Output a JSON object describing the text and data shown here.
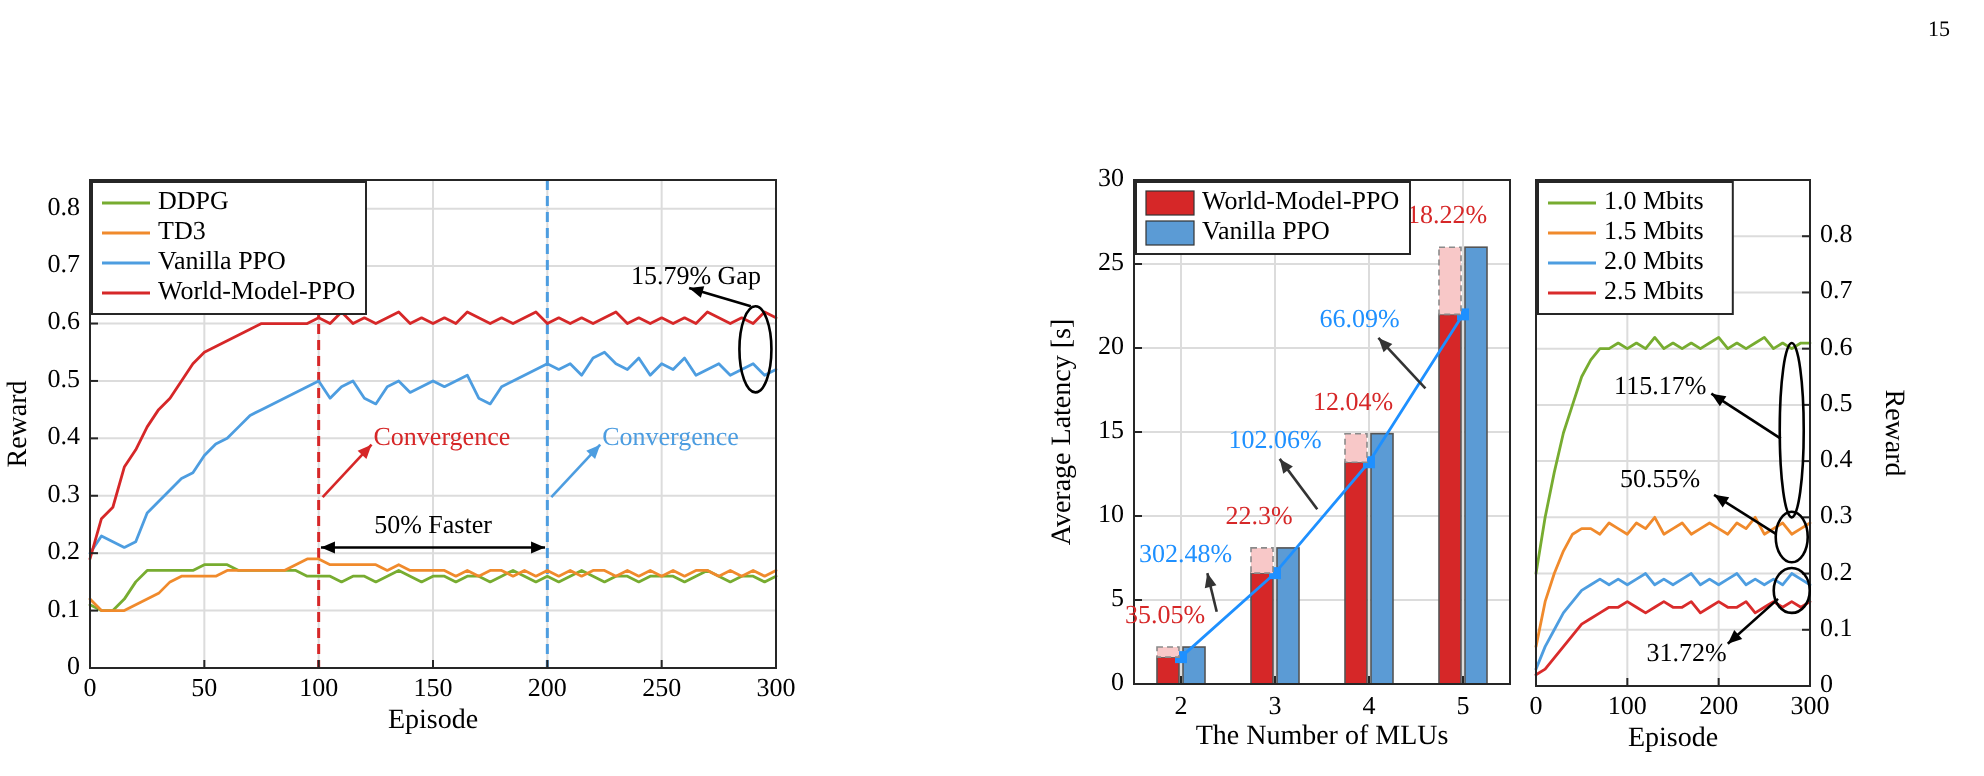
{
  "chart_data": [
    {
      "type": "line",
      "xlabel": "Episode",
      "ylabel": "Reward",
      "x": [
        0,
        5,
        10,
        15,
        20,
        25,
        30,
        35,
        40,
        45,
        50,
        55,
        60,
        65,
        70,
        75,
        80,
        85,
        90,
        95,
        100,
        105,
        110,
        115,
        120,
        125,
        130,
        135,
        140,
        145,
        150,
        155,
        160,
        165,
        170,
        175,
        180,
        185,
        190,
        195,
        200,
        205,
        210,
        215,
        220,
        225,
        230,
        235,
        240,
        245,
        250,
        255,
        260,
        265,
        270,
        275,
        280,
        285,
        290,
        295,
        300
      ],
      "xlim": [
        0,
        300
      ],
      "xticks": [
        0,
        50,
        100,
        150,
        200,
        250,
        300
      ],
      "ylim": [
        0,
        0.85
      ],
      "yticks": [
        0,
        0.1,
        0.2,
        0.3,
        0.4,
        0.5,
        0.6,
        0.7,
        0.8
      ],
      "grid": true,
      "legend": "top left",
      "series": [
        {
          "name": "DDPG",
          "color": "#77ac30",
          "values": [
            0.11,
            0.1,
            0.1,
            0.12,
            0.15,
            0.17,
            0.17,
            0.17,
            0.17,
            0.17,
            0.18,
            0.18,
            0.18,
            0.17,
            0.17,
            0.17,
            0.17,
            0.17,
            0.17,
            0.16,
            0.16,
            0.16,
            0.15,
            0.16,
            0.16,
            0.15,
            0.16,
            0.17,
            0.16,
            0.15,
            0.16,
            0.16,
            0.15,
            0.16,
            0.16,
            0.15,
            0.16,
            0.17,
            0.16,
            0.15,
            0.16,
            0.15,
            0.16,
            0.17,
            0.16,
            0.15,
            0.16,
            0.16,
            0.15,
            0.16,
            0.16,
            0.16,
            0.15,
            0.16,
            0.17,
            0.16,
            0.15,
            0.16,
            0.16,
            0.15,
            0.16
          ]
        },
        {
          "name": "TD3",
          "color": "#f08a2c",
          "values": [
            0.12,
            0.1,
            0.1,
            0.1,
            0.11,
            0.12,
            0.13,
            0.15,
            0.16,
            0.16,
            0.16,
            0.16,
            0.17,
            0.17,
            0.17,
            0.17,
            0.17,
            0.17,
            0.18,
            0.19,
            0.19,
            0.18,
            0.18,
            0.18,
            0.18,
            0.18,
            0.17,
            0.18,
            0.17,
            0.17,
            0.17,
            0.17,
            0.16,
            0.17,
            0.16,
            0.17,
            0.17,
            0.16,
            0.17,
            0.16,
            0.17,
            0.16,
            0.17,
            0.16,
            0.17,
            0.17,
            0.16,
            0.17,
            0.16,
            0.17,
            0.16,
            0.17,
            0.16,
            0.17,
            0.17,
            0.16,
            0.17,
            0.16,
            0.17,
            0.16,
            0.17
          ]
        },
        {
          "name": "Vanilla PPO",
          "color": "#4d9de0",
          "values": [
            0.2,
            0.23,
            0.22,
            0.21,
            0.22,
            0.27,
            0.29,
            0.31,
            0.33,
            0.34,
            0.37,
            0.39,
            0.4,
            0.42,
            0.44,
            0.45,
            0.46,
            0.47,
            0.48,
            0.49,
            0.5,
            0.47,
            0.49,
            0.5,
            0.47,
            0.46,
            0.49,
            0.5,
            0.48,
            0.49,
            0.5,
            0.49,
            0.5,
            0.51,
            0.47,
            0.46,
            0.49,
            0.5,
            0.51,
            0.52,
            0.53,
            0.52,
            0.53,
            0.51,
            0.54,
            0.55,
            0.53,
            0.52,
            0.54,
            0.51,
            0.53,
            0.52,
            0.54,
            0.51,
            0.52,
            0.53,
            0.51,
            0.52,
            0.53,
            0.51,
            0.52
          ]
        },
        {
          "name": "World-Model-PPO",
          "color": "#d62728",
          "values": [
            0.19,
            0.26,
            0.28,
            0.35,
            0.38,
            0.42,
            0.45,
            0.47,
            0.5,
            0.53,
            0.55,
            0.56,
            0.57,
            0.58,
            0.59,
            0.6,
            0.6,
            0.6,
            0.6,
            0.6,
            0.61,
            0.6,
            0.62,
            0.6,
            0.61,
            0.6,
            0.61,
            0.62,
            0.6,
            0.61,
            0.6,
            0.61,
            0.6,
            0.62,
            0.61,
            0.6,
            0.61,
            0.6,
            0.61,
            0.62,
            0.6,
            0.61,
            0.6,
            0.61,
            0.6,
            0.61,
            0.62,
            0.6,
            0.61,
            0.6,
            0.61,
            0.6,
            0.61,
            0.6,
            0.62,
            0.61,
            0.6,
            0.61,
            0.6,
            0.62,
            0.61
          ]
        }
      ],
      "ref_lines": [
        {
          "axis": "x",
          "value": 100,
          "label": "Convergence",
          "color": "#d62728",
          "line_style": "dashed"
        },
        {
          "axis": "x",
          "value": 200,
          "label": "Convergence",
          "color": "#4d9de0",
          "line_style": "dashed"
        }
      ],
      "annotations": [
        "15.79% Gap",
        "50% Faster"
      ]
    },
    {
      "type": "bar",
      "xlabel": "The Number of MLUs",
      "ylabel": "Average Latency [s]",
      "categories": [
        "2",
        "3",
        "4",
        "5"
      ],
      "ylim": [
        0,
        30
      ],
      "yticks": [
        0,
        5,
        10,
        15,
        20,
        25,
        30
      ],
      "grid": true,
      "legend": "top left",
      "series": [
        {
          "name": "World-Model-PPO",
          "color": "#d62728",
          "values": [
            1.6,
            6.6,
            13.2,
            22
          ]
        },
        {
          "name": "Vanilla PPO",
          "color": "#5b9bd5",
          "values": [
            2.2,
            8.1,
            14.9,
            26
          ]
        },
        {
          "type": "line",
          "color": "#1e90ff",
          "values": [
            1.6,
            6.6,
            13.2,
            22
          ],
          "marker": "square"
        }
      ],
      "annotations": [
        {
          "text": "35.05%",
          "x": "2",
          "y": 2.2
        },
        {
          "text": "22.3%",
          "x": "3",
          "y": 8.1
        },
        {
          "text": "12.04%",
          "x": "4",
          "y": 14.9
        },
        {
          "text": "18.22%",
          "x": "5",
          "y": 26
        },
        "302.48%",
        "102.06%",
        "66.09%"
      ]
    },
    {
      "type": "line",
      "xlabel": "Episode",
      "y2label": "Reward",
      "x": [
        0,
        10,
        20,
        30,
        40,
        50,
        60,
        70,
        80,
        90,
        100,
        110,
        120,
        130,
        140,
        150,
        160,
        170,
        180,
        190,
        200,
        210,
        220,
        230,
        240,
        250,
        260,
        270,
        280,
        290,
        300
      ],
      "xlim": [
        0,
        300
      ],
      "xticks": [
        0,
        100,
        200,
        300
      ],
      "y2lim": [
        0,
        0.9
      ],
      "y2ticks": [
        0,
        0.1,
        0.2,
        0.3,
        0.4,
        0.5,
        0.6,
        0.7,
        0.8
      ],
      "grid": true,
      "legend": "top left",
      "series": [
        {
          "name": "1.0 Mbits",
          "axis": "y2",
          "color": "#77ac30",
          "values": [
            0.2,
            0.3,
            0.38,
            0.45,
            0.5,
            0.55,
            0.58,
            0.6,
            0.6,
            0.61,
            0.6,
            0.61,
            0.6,
            0.62,
            0.6,
            0.61,
            0.6,
            0.61,
            0.6,
            0.61,
            0.62,
            0.6,
            0.61,
            0.6,
            0.61,
            0.62,
            0.6,
            0.61,
            0.6,
            0.61,
            0.61
          ]
        },
        {
          "name": "1.5 Mbits",
          "axis": "y2",
          "color": "#f08a2c",
          "values": [
            0.07,
            0.15,
            0.2,
            0.24,
            0.27,
            0.28,
            0.28,
            0.27,
            0.29,
            0.28,
            0.27,
            0.29,
            0.28,
            0.3,
            0.27,
            0.28,
            0.29,
            0.27,
            0.28,
            0.29,
            0.28,
            0.27,
            0.29,
            0.28,
            0.3,
            0.27,
            0.28,
            0.29,
            0.27,
            0.28,
            0.29
          ]
        },
        {
          "name": "2.0 Mbits",
          "axis": "y2",
          "color": "#4d9de0",
          "values": [
            0.03,
            0.07,
            0.1,
            0.13,
            0.15,
            0.17,
            0.18,
            0.19,
            0.18,
            0.19,
            0.18,
            0.19,
            0.2,
            0.18,
            0.19,
            0.18,
            0.19,
            0.2,
            0.18,
            0.19,
            0.18,
            0.19,
            0.2,
            0.18,
            0.19,
            0.18,
            0.19,
            0.18,
            0.2,
            0.19,
            0.18
          ]
        },
        {
          "name": "2.5 Mbits",
          "axis": "y2",
          "color": "#d92b2b",
          "values": [
            0.02,
            0.03,
            0.05,
            0.07,
            0.09,
            0.11,
            0.12,
            0.13,
            0.14,
            0.14,
            0.15,
            0.14,
            0.13,
            0.14,
            0.15,
            0.14,
            0.14,
            0.15,
            0.13,
            0.14,
            0.15,
            0.14,
            0.14,
            0.15,
            0.13,
            0.14,
            0.15,
            0.14,
            0.15,
            0.14,
            0.15
          ]
        }
      ],
      "annotations": [
        "115.17%",
        "50.55%",
        "31.72%",
        "15"
      ]
    }
  ]
}
